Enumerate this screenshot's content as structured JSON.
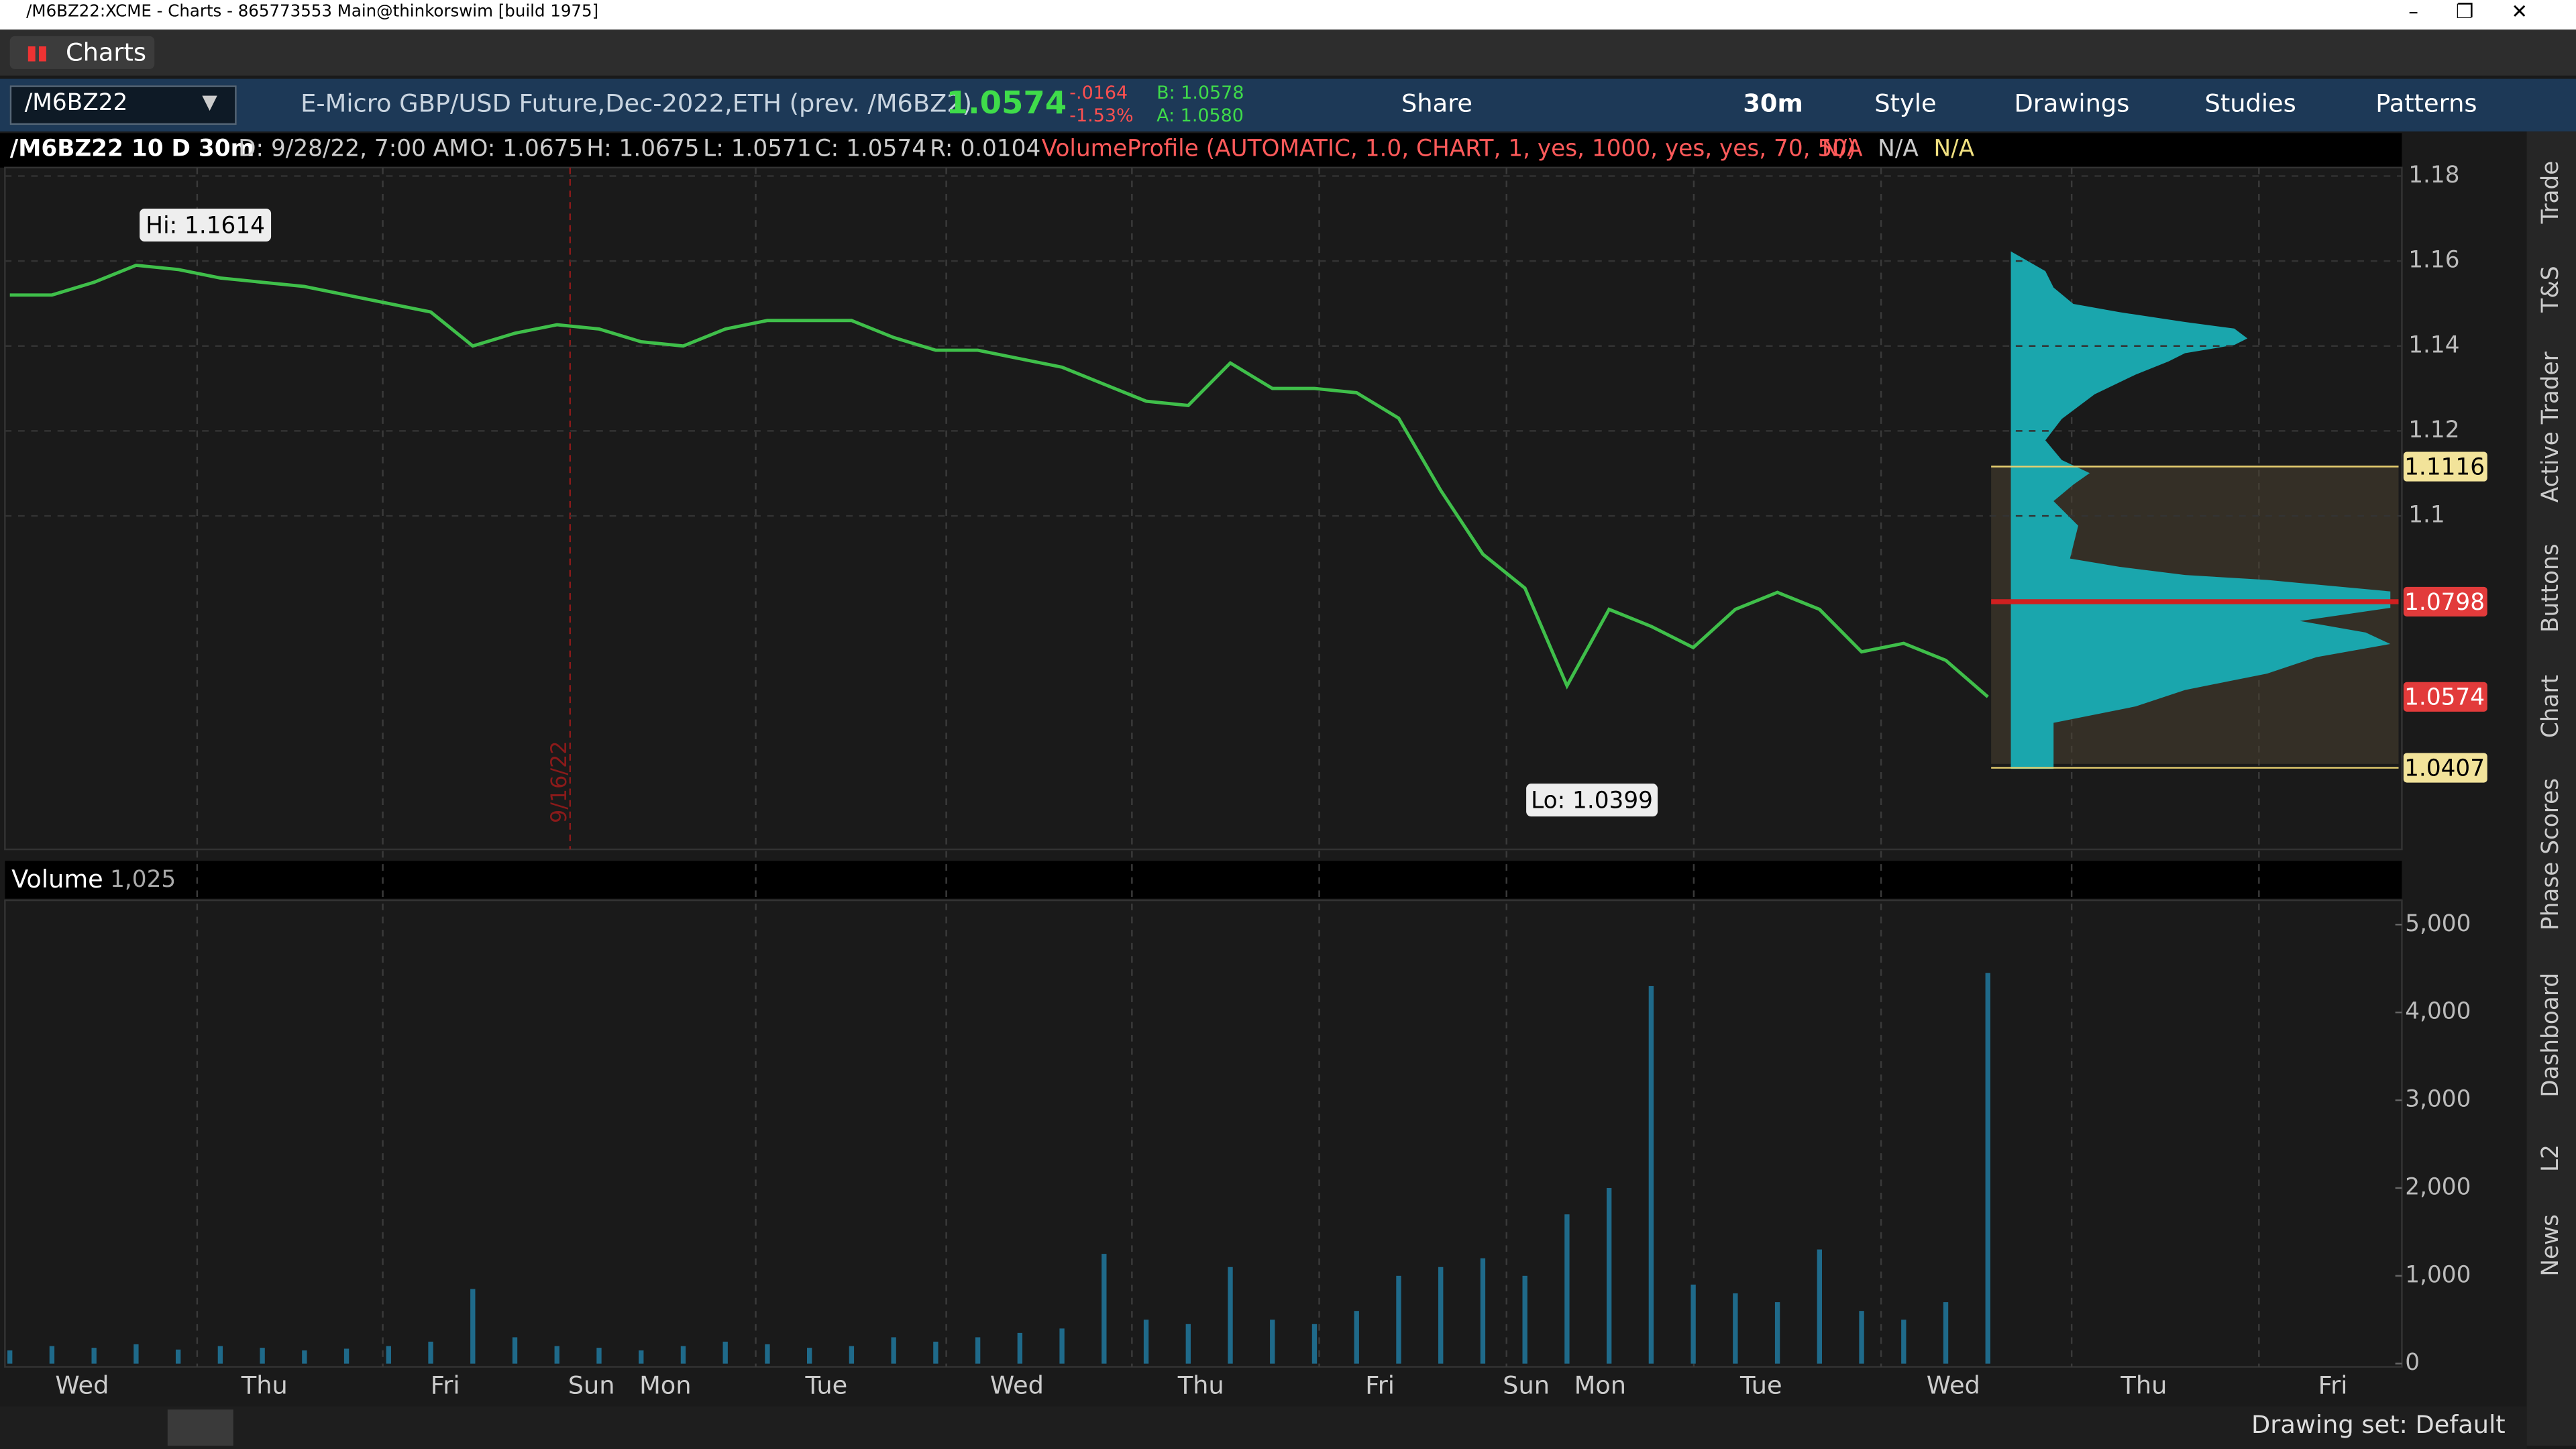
{
  "window": {
    "title": "/M6BZ22:XCME - Charts - 865773553 Main@thinkorswim [build 1975]"
  },
  "tab": "Charts",
  "toolbar": {
    "symbol": "/M6BZ22",
    "description": "E-Micro GBP/USD Future,Dec-2022,ETH (prev. /M6BZ2)",
    "last": "1.0574",
    "change": "-.0164",
    "change_pct": "-1.53%",
    "bid": "B: 1.0578",
    "ask": "A: 1.0580",
    "buttons": [
      "Share",
      "30m",
      "Style",
      "Drawings",
      "Studies",
      "Patterns"
    ]
  },
  "info": {
    "study": "/M6BZ22 10 D 30m",
    "date": "D: 9/28/22, 7:00 AM",
    "open": "O: 1.0675",
    "high": "H: 1.0675",
    "low": "L: 1.0571",
    "close": "C: 1.0574",
    "range": "R: 0.0104",
    "profile": "VolumeProfile (AUTOMATIC, 1.0, CHART, 1, yes, 1000, yes, yes, 70, 50)",
    "na": [
      "N/A",
      "N/A",
      "N/A"
    ]
  },
  "chart_data": [
    {
      "type": "line",
      "color": "#3fbf4a",
      "ylim": [
        1.0215,
        1.182
      ],
      "yticks": [
        1.18,
        1.16,
        1.14,
        1.12,
        1.1
      ],
      "grid": true,
      "values": [
        1.152,
        1.152,
        1.155,
        1.159,
        1.158,
        1.156,
        1.155,
        1.154,
        1.152,
        1.15,
        1.148,
        1.14,
        1.143,
        1.145,
        1.144,
        1.141,
        1.14,
        1.144,
        1.146,
        1.146,
        1.146,
        1.142,
        1.139,
        1.139,
        1.137,
        1.135,
        1.131,
        1.127,
        1.126,
        1.136,
        1.13,
        1.13,
        1.129,
        1.123,
        1.106,
        1.091,
        1.083,
        1.06,
        1.078,
        1.074,
        1.069,
        1.078,
        1.082,
        1.078,
        1.068,
        1.07,
        1.066,
        1.0574
      ],
      "annotations": [
        "Hi: 1.1614",
        "Lo: 1.0399"
      ],
      "marker_label": "9/16/22",
      "price_levels": [
        1.1116,
        1.0798,
        1.0574,
        1.0407
      ]
    },
    {
      "type": "bar",
      "title": "Volume",
      "subtitle": "1,025",
      "color": "#1f6a8a",
      "ylim": [
        -37,
        5277
      ],
      "yticks": [
        {
          "value": 5000,
          "label": "5,000"
        },
        {
          "value": 4000,
          "label": "4,000"
        },
        {
          "value": 3000,
          "label": "3,000"
        },
        {
          "value": 2000,
          "label": "2,000"
        },
        {
          "value": 1000,
          "label": "1,000"
        },
        0
      ],
      "values": [
        150,
        200,
        180,
        220,
        160,
        200,
        180,
        150,
        170,
        200,
        250,
        850,
        300,
        200,
        180,
        150,
        200,
        250,
        220,
        180,
        200,
        300,
        250,
        300,
        350,
        400,
        1250,
        500,
        450,
        1100,
        500,
        450,
        600,
        1000,
        1100,
        1200,
        1000,
        1700,
        2000,
        4300,
        900,
        800,
        700,
        1300,
        600,
        500,
        700,
        4450
      ]
    }
  ],
  "x_axis_labels": [
    "Wed",
    "Thu",
    "Fri",
    "Sun",
    "Mon",
    "Tue",
    "Wed",
    "Thu",
    "Fri",
    "Sun",
    "Mon",
    "Tue",
    "Wed",
    "Thu",
    "Fri"
  ],
  "side_tabs": [
    "Trade",
    "T&S",
    "Active Trader",
    "Buttons",
    "Chart",
    "Phase Scores",
    "Dashboard",
    "L2",
    "News"
  ],
  "status": "Drawing set: Default"
}
